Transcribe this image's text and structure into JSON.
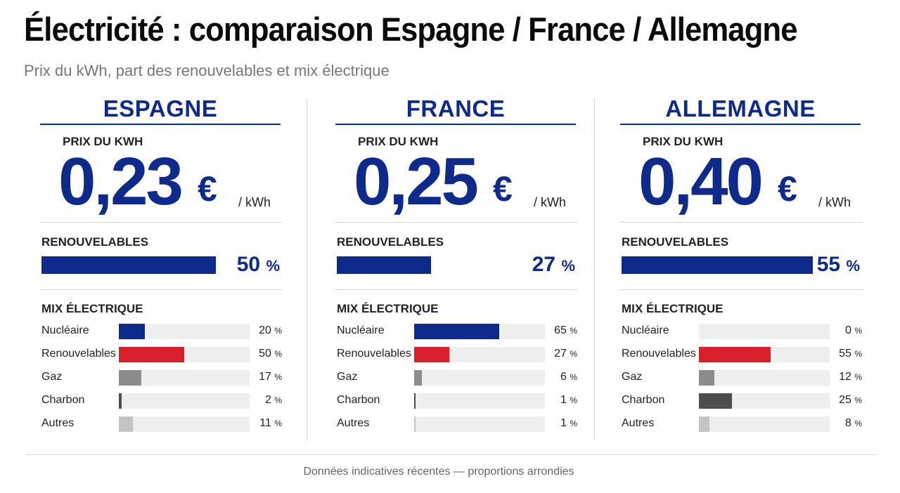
{
  "title": "Électricité : comparaison Espagne / France / Allemagne",
  "subtitle": "Prix du kWh, part des renouvelables et mix électrique",
  "footer": "Données indicatives récentes — proportions arrondies",
  "labels": {
    "price": "PRIX DU KWH",
    "renewables": "RENOUVELABLES",
    "mix": "MIX ÉLECTRIQUE",
    "currency": "€",
    "unit": "/ kWh",
    "percent": "%"
  },
  "colors": {
    "primary": "#0d2a8c",
    "Nucléaire": "#0d2a8c",
    "Renouvelables": "#d9202a",
    "Gaz": "#8c8c8c",
    "Charbon": "#4d4d4d",
    "Autres": "#c4c4c4"
  },
  "chart_data": {
    "type": "bar",
    "title": "Électricité : comparaison Espagne / France / Allemagne",
    "subtitle": "Prix du kWh, part des renouvelables et mix électrique",
    "countries": [
      {
        "name": "ESPAGNE",
        "price": "0,23",
        "renewables_pct": 50,
        "mix": [
          {
            "label": "Nucléaire",
            "value": 20
          },
          {
            "label": "Renouvelables",
            "value": 50
          },
          {
            "label": "Gaz",
            "value": 17
          },
          {
            "label": "Charbon",
            "value": 2
          },
          {
            "label": "Autres",
            "value": 11
          }
        ]
      },
      {
        "name": "FRANCE",
        "price": "0,25",
        "renewables_pct": 27,
        "mix": [
          {
            "label": "Nucléaire",
            "value": 65
          },
          {
            "label": "Renouvelables",
            "value": 27
          },
          {
            "label": "Gaz",
            "value": 6
          },
          {
            "label": "Charbon",
            "value": 1
          },
          {
            "label": "Autres",
            "value": 1
          }
        ]
      },
      {
        "name": "ALLEMAGNE",
        "price": "0,40",
        "renewables_pct": 55,
        "mix": [
          {
            "label": "Nucléaire",
            "value": 0
          },
          {
            "label": "Renouvelables",
            "value": 55
          },
          {
            "label": "Gaz",
            "value": 12
          },
          {
            "label": "Charbon",
            "value": 25
          },
          {
            "label": "Autres",
            "value": 8
          }
        ]
      }
    ]
  }
}
